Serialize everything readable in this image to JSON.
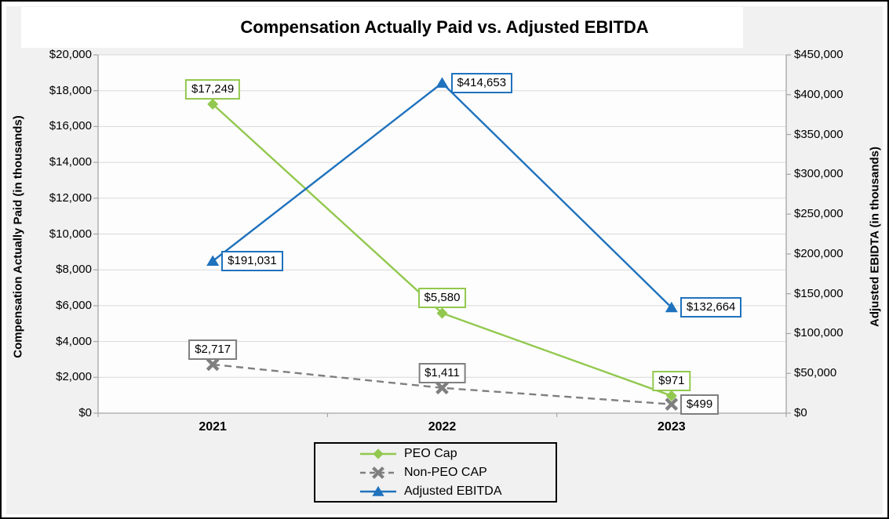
{
  "title": "Compensation Actually Paid vs. Adjusted EBITDA",
  "colors": {
    "background": "#F1F1F1",
    "plot_background": "#FDFDFD",
    "gridline": "#D9D9D9",
    "axis_line": "#A6A6A6",
    "title_band": "#FFFFFF",
    "frame_border": "#000000",
    "peo_green": "#92C84E",
    "non_peo_gray": "#7F7F7F",
    "ebitda_blue": "#1F72BD"
  },
  "chart_data": {
    "type": "line",
    "title": "Compensation Actually Paid vs. Adjusted EBITDA",
    "categories": [
      "2021",
      "2022",
      "2023"
    ],
    "series": [
      {
        "name": "PEO Cap",
        "axis": "left",
        "color": "#92C84E",
        "marker": "diamond",
        "line": "solid",
        "values": [
          17249,
          5580,
          971
        ],
        "data_labels": [
          "$17,249",
          "$5,580",
          "$971"
        ],
        "label_placements": [
          "above",
          "above",
          "above"
        ]
      },
      {
        "name": "Non-PEO CAP",
        "axis": "left",
        "color": "#7F7F7F",
        "marker": "x",
        "line": "dashed",
        "values": [
          2717,
          1411,
          499
        ],
        "data_labels": [
          "$2,717",
          "$1,411",
          "$499"
        ],
        "label_placements": [
          "above",
          "above",
          "right"
        ]
      },
      {
        "name": "Adjusted EBITDA",
        "axis": "right",
        "color": "#1F72BD",
        "marker": "triangle",
        "line": "solid",
        "values": [
          191031,
          414653,
          132664
        ],
        "data_labels": [
          "$191,031",
          "$414,653",
          "$132,664"
        ],
        "label_placements": [
          "right",
          "right",
          "right"
        ]
      }
    ],
    "left_axis": {
      "title": "Compensation Actually Paid (in thousands)",
      "min": 0,
      "max": 20000,
      "step": 2000,
      "tick_labels": [
        "$0",
        "$2,000",
        "$4,000",
        "$6,000",
        "$8,000",
        "$10,000",
        "$12,000",
        "$14,000",
        "$16,000",
        "$18,000",
        "$20,000"
      ]
    },
    "right_axis": {
      "title": "Adjusted EBIDTA (in thousands)",
      "min": 0,
      "max": 450000,
      "step": 50000,
      "tick_labels": [
        "$0",
        "$50,000",
        "$100,000",
        "$150,000",
        "$200,000",
        "$250,000",
        "$300,000",
        "$350,000",
        "$400,000",
        "$450,000"
      ]
    },
    "grid": true,
    "legend_position": "bottom"
  }
}
